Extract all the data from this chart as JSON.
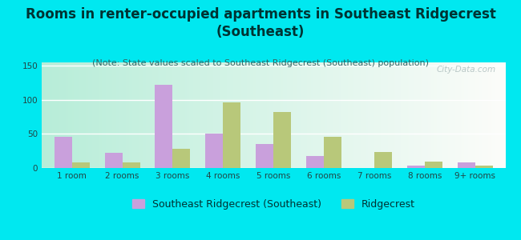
{
  "title": "Rooms in renter-occupied apartments in Southeast Ridgecrest\n(Southeast)",
  "subtitle": "(Note: State values scaled to Southeast Ridgecrest (Southeast) population)",
  "categories": [
    "1 room",
    "2 rooms",
    "3 rooms",
    "4 rooms",
    "5 rooms",
    "6 rooms",
    "7 rooms",
    "8 rooms",
    "9+ rooms"
  ],
  "series1_label": "Southeast Ridgecrest (Southeast)",
  "series1_values": [
    46,
    22,
    122,
    50,
    35,
    18,
    0,
    4,
    8
  ],
  "series1_color": "#c9a0dc",
  "series2_label": "Ridgecrest",
  "series2_values": [
    8,
    8,
    28,
    96,
    82,
    46,
    23,
    9,
    4
  ],
  "series2_color": "#b8c87a",
  "ylim": [
    0,
    155
  ],
  "yticks": [
    0,
    50,
    100,
    150
  ],
  "background_outer": "#00e8f0",
  "title_color": "#003333",
  "subtitle_color": "#336666",
  "title_fontsize": 12,
  "subtitle_fontsize": 8,
  "tick_fontsize": 7.5,
  "legend_fontsize": 9,
  "bar_width": 0.35,
  "watermark": "City-Data.com"
}
